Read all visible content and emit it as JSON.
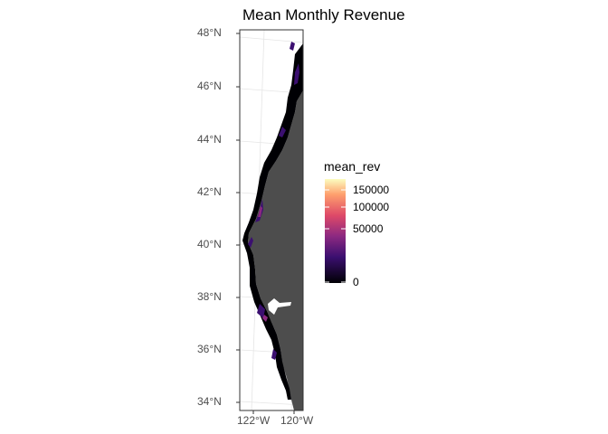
{
  "title": "Mean Monthly Revenue",
  "axes": {
    "lat_labels": [
      "48°N",
      "46°N",
      "44°N",
      "42°N",
      "40°N",
      "38°N",
      "36°N",
      "34°N"
    ],
    "lon_labels": [
      "122°W",
      "120°W"
    ]
  },
  "legend": {
    "title": "mean_rev",
    "labels": [
      "150000",
      "100000",
      "50000",
      "0"
    ],
    "colors": [
      "#000004",
      "#3b0f70",
      "#8c2981",
      "#de4968",
      "#fe9f6d",
      "#fcfdbf"
    ]
  },
  "colors": {
    "land": "#4d4d4d",
    "ocean": "#ffffff",
    "grid": "#e5e5e5",
    "panel_border": "#333333"
  }
}
